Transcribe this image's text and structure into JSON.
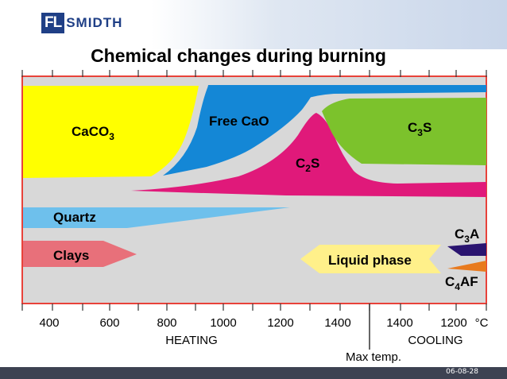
{
  "logo": {
    "mark": "FL",
    "rest": "SMIDTH"
  },
  "title": "Chemical changes during burning",
  "phases": {
    "caco3": {
      "base": "CaCO",
      "sub": "3"
    },
    "free_cao": "Free CaO",
    "c2s": {
      "a": "C",
      "sub": "2",
      "b": "S"
    },
    "c3s": {
      "a": "C",
      "sub": "3",
      "b": "S"
    },
    "quartz": "Quartz",
    "clays": "Clays",
    "liquid_phase": "Liquid phase",
    "c3a": {
      "a": "C",
      "sub": "3",
      "b": "A"
    },
    "c4af": {
      "a": "C",
      "sub": "4",
      "b": "AF"
    }
  },
  "axis": {
    "heating_ticks": [
      "400",
      "600",
      "800",
      "1000",
      "1200",
      "1400"
    ],
    "cooling_ticks": [
      "1400",
      "1200"
    ],
    "unit": "°C",
    "heating_label": "HEATING",
    "cooling_label": "COOLING",
    "max_temp_label": "Max temp."
  },
  "colors": {
    "frame": "#e8423a",
    "background": "#d8d8d8",
    "caco3": "#ffff00",
    "free_cao": "#1487d6",
    "c2s": "#e0197a",
    "c3s": "#7cc22c",
    "quartz": "#6ec0ec",
    "clays": "#e8707a",
    "liquid_phase": "#fff08a",
    "c3a": "#2a1470",
    "c4af": "#e87a1e"
  },
  "footer": {
    "date": "06-08-28"
  }
}
